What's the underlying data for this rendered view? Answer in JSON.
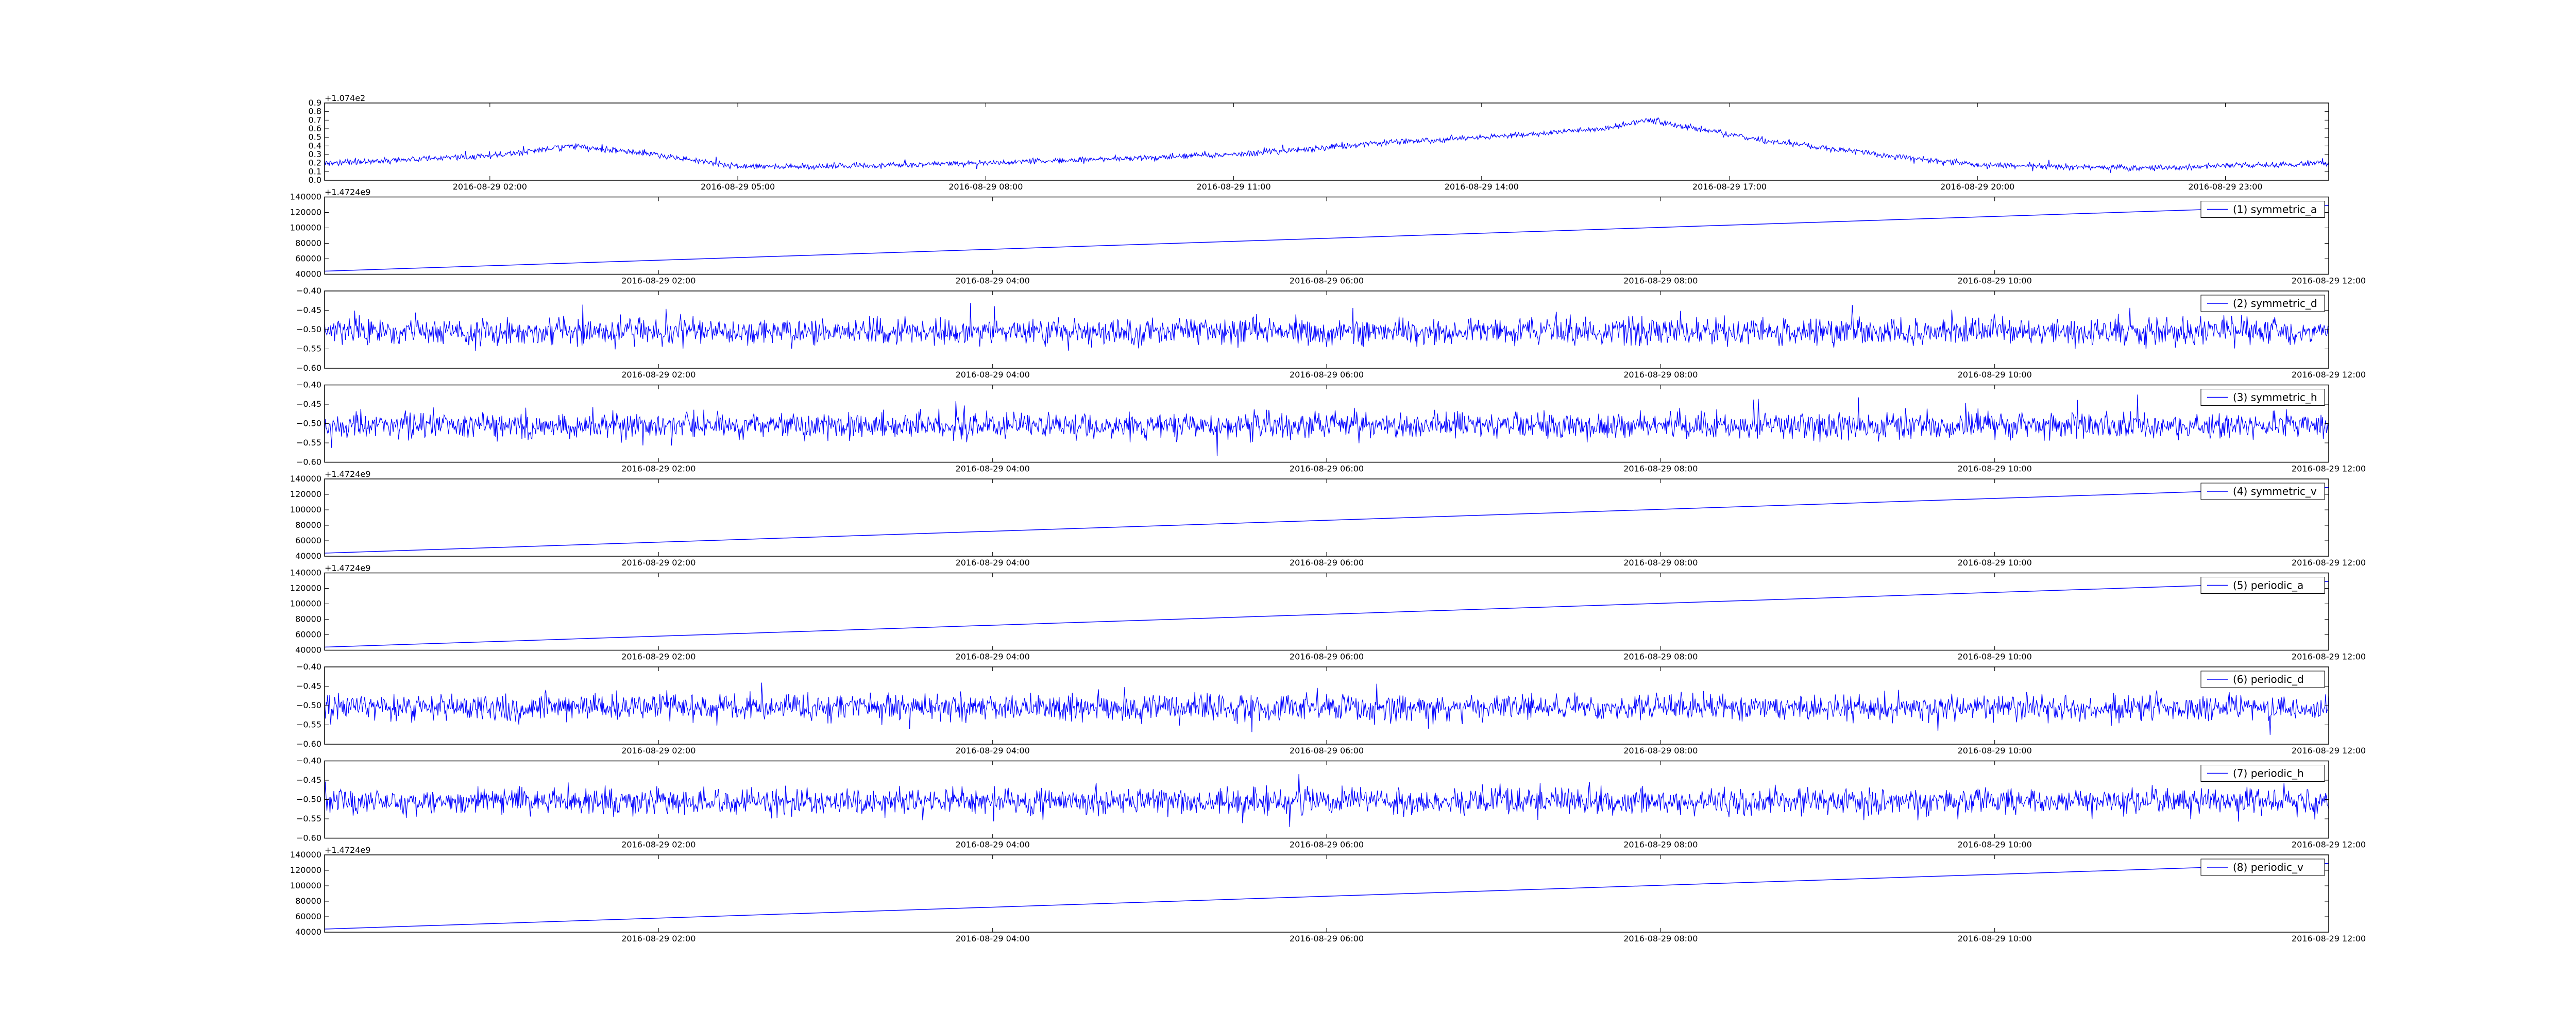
{
  "colors": {
    "line": "#0000ff",
    "axis": "#000000",
    "background": "#ffffff"
  },
  "chart_data": [
    {
      "type": "line",
      "legend": "",
      "grid": false,
      "y_offset_label": "+1.074e2",
      "yticks": [
        "0.0",
        "0.1",
        "0.2",
        "0.3",
        "0.4",
        "0.5",
        "0.6",
        "0.7",
        "0.8",
        "0.9"
      ],
      "ylim": [
        0.0,
        0.9
      ],
      "xticks": [
        "2016-08-29 02:00",
        "2016-08-29 05:00",
        "2016-08-29 08:00",
        "2016-08-29 11:00",
        "2016-08-29 14:00",
        "2016-08-29 17:00",
        "2016-08-29 20:00",
        "2016-08-29 23:00"
      ],
      "xlim": [
        "2016-08-29 00:00",
        "2016-08-30 00:15"
      ],
      "trend": {
        "x": [
          "2016-08-29 00:00",
          "2016-08-29 02:00",
          "2016-08-29 03:00",
          "2016-08-29 04:00",
          "2016-08-29 05:00",
          "2016-08-29 06:00",
          "2016-08-29 08:00",
          "2016-08-29 11:00",
          "2016-08-29 13:00",
          "2016-08-29 14:00",
          "2016-08-29 15:30",
          "2016-08-29 16:00",
          "2016-08-29 17:30",
          "2016-08-29 19:00",
          "2016-08-29 20:00",
          "2016-08-29 22:00",
          "2016-08-30 00:15"
        ],
        "y": [
          0.2,
          0.28,
          0.4,
          0.3,
          0.16,
          0.16,
          0.2,
          0.3,
          0.45,
          0.5,
          0.6,
          0.7,
          0.45,
          0.28,
          0.18,
          0.14,
          0.2
        ]
      },
      "noise_amplitude": 0.05
    },
    {
      "type": "line",
      "legend": "(1) symmetric_a",
      "grid": false,
      "y_offset_label": "+1.4724e9",
      "yticks": [
        "40000",
        "60000",
        "80000",
        "100000",
        "120000",
        "140000"
      ],
      "ylim": [
        40000,
        140000
      ],
      "xticks": [
        "2016-08-29 02:00",
        "2016-08-29 04:00",
        "2016-08-29 06:00",
        "2016-08-29 08:00",
        "2016-08-29 10:00",
        "2016-08-29 12:00"
      ],
      "xlim": [
        "2016-08-29 00:00",
        "2016-08-29 12:00"
      ],
      "x": [
        "2016-08-29 00:00",
        "2016-08-29 12:00"
      ],
      "y": [
        44000,
        129000
      ]
    },
    {
      "type": "line",
      "legend": "(2) symmetric_d",
      "grid": false,
      "y_offset_label": "",
      "yticks": [
        "−0.60",
        "−0.55",
        "−0.50",
        "−0.45",
        "−0.40"
      ],
      "ylim": [
        -0.6,
        -0.4
      ],
      "xticks": [
        "2016-08-29 02:00",
        "2016-08-29 04:00",
        "2016-08-29 06:00",
        "2016-08-29 08:00",
        "2016-08-29 10:00",
        "2016-08-29 12:00"
      ],
      "xlim": [
        "2016-08-29 00:00",
        "2016-08-29 12:00"
      ],
      "noise_center": -0.505,
      "noise_amplitude": 0.05
    },
    {
      "type": "line",
      "legend": "(3) symmetric_h",
      "grid": false,
      "y_offset_label": "",
      "yticks": [
        "−0.60",
        "−0.55",
        "−0.50",
        "−0.45",
        "−0.40"
      ],
      "ylim": [
        -0.6,
        -0.4
      ],
      "xticks": [
        "2016-08-29 02:00",
        "2016-08-29 04:00",
        "2016-08-29 06:00",
        "2016-08-29 08:00",
        "2016-08-29 10:00",
        "2016-08-29 12:00"
      ],
      "xlim": [
        "2016-08-29 00:00",
        "2016-08-29 12:00"
      ],
      "noise_center": -0.505,
      "noise_amplitude": 0.05
    },
    {
      "type": "line",
      "legend": "(4) symmetric_v",
      "grid": false,
      "y_offset_label": "+1.4724e9",
      "yticks": [
        "40000",
        "60000",
        "80000",
        "100000",
        "120000",
        "140000"
      ],
      "ylim": [
        40000,
        140000
      ],
      "xticks": [
        "2016-08-29 02:00",
        "2016-08-29 04:00",
        "2016-08-29 06:00",
        "2016-08-29 08:00",
        "2016-08-29 10:00",
        "2016-08-29 12:00"
      ],
      "xlim": [
        "2016-08-29 00:00",
        "2016-08-29 12:00"
      ],
      "x": [
        "2016-08-29 00:00",
        "2016-08-29 12:00"
      ],
      "y": [
        44000,
        129000
      ]
    },
    {
      "type": "line",
      "legend": "(5) periodic_a",
      "grid": false,
      "y_offset_label": "+1.4724e9",
      "yticks": [
        "40000",
        "60000",
        "80000",
        "100000",
        "120000",
        "140000"
      ],
      "ylim": [
        40000,
        140000
      ],
      "xticks": [
        "2016-08-29 02:00",
        "2016-08-29 04:00",
        "2016-08-29 06:00",
        "2016-08-29 08:00",
        "2016-08-29 10:00",
        "2016-08-29 12:00"
      ],
      "xlim": [
        "2016-08-29 00:00",
        "2016-08-29 12:00"
      ],
      "x": [
        "2016-08-29 00:00",
        "2016-08-29 12:00"
      ],
      "y": [
        44000,
        129000
      ]
    },
    {
      "type": "line",
      "legend": "(6) periodic_d",
      "grid": false,
      "y_offset_label": "",
      "yticks": [
        "−0.60",
        "−0.55",
        "−0.50",
        "−0.45",
        "−0.40"
      ],
      "ylim": [
        -0.6,
        -0.4
      ],
      "xticks": [
        "2016-08-29 02:00",
        "2016-08-29 04:00",
        "2016-08-29 06:00",
        "2016-08-29 08:00",
        "2016-08-29 10:00",
        "2016-08-29 12:00"
      ],
      "xlim": [
        "2016-08-29 00:00",
        "2016-08-29 12:00"
      ],
      "noise_center": -0.505,
      "noise_amplitude": 0.05
    },
    {
      "type": "line",
      "legend": "(7) periodic_h",
      "grid": false,
      "y_offset_label": "",
      "yticks": [
        "−0.60",
        "−0.55",
        "−0.50",
        "−0.45",
        "−0.40"
      ],
      "ylim": [
        -0.6,
        -0.4
      ],
      "xticks": [
        "2016-08-29 02:00",
        "2016-08-29 04:00",
        "2016-08-29 06:00",
        "2016-08-29 08:00",
        "2016-08-29 10:00",
        "2016-08-29 12:00"
      ],
      "xlim": [
        "2016-08-29 00:00",
        "2016-08-29 12:00"
      ],
      "noise_center": -0.505,
      "noise_amplitude": 0.05
    },
    {
      "type": "line",
      "legend": "(8) periodic_v",
      "grid": false,
      "y_offset_label": "+1.4724e9",
      "yticks": [
        "40000",
        "60000",
        "80000",
        "100000",
        "120000",
        "140000"
      ],
      "ylim": [
        40000,
        140000
      ],
      "xticks": [
        "2016-08-29 02:00",
        "2016-08-29 04:00",
        "2016-08-29 06:00",
        "2016-08-29 08:00",
        "2016-08-29 10:00",
        "2016-08-29 12:00"
      ],
      "xlim": [
        "2016-08-29 00:00",
        "2016-08-29 12:00"
      ],
      "x": [
        "2016-08-29 00:00",
        "2016-08-29 12:00"
      ],
      "y": [
        44000,
        129000
      ]
    }
  ]
}
